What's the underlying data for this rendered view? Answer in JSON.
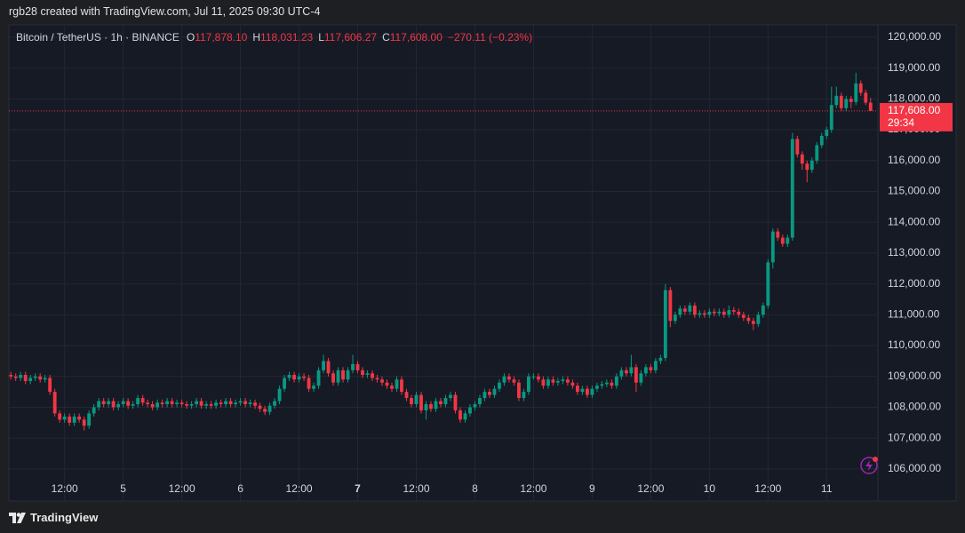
{
  "header": {
    "caption": "rgb28 created with TradingView.com, Jul 11, 2025 09:30 UTC-4"
  },
  "chart_data": {
    "type": "candlestick",
    "symbol": "Bitcoin / TetherUS · 1h · BINANCE",
    "ohlc_legend": [
      {
        "key": "O",
        "value": "117,878.10"
      },
      {
        "key": "H",
        "value": "118,031.23"
      },
      {
        "key": "L",
        "value": "117,606.27"
      },
      {
        "key": "C",
        "value": "117,608.00"
      }
    ],
    "change": "−270.11 (−0.23%)",
    "up_color": "#089981",
    "down_color": "#f23645",
    "grid": true,
    "open": [
      109050,
      109000,
      108950,
      109050,
      108850,
      108950,
      109000,
      108900,
      108950,
      108500,
      107800,
      107600,
      107700,
      107500,
      107700,
      107600,
      107400,
      107800,
      108000,
      108200,
      108100,
      108200,
      108000,
      108100,
      108200,
      108050,
      108100,
      108300,
      108150,
      108100,
      108000,
      108150,
      108100,
      108200,
      108100,
      108150,
      108100,
      108050,
      108100,
      108200,
      108050,
      108100,
      108050,
      108150,
      108100,
      108200,
      108100,
      108150,
      108200,
      108100,
      108150,
      108050,
      107950,
      107850,
      108050,
      108200,
      108600,
      108950,
      109050,
      108900,
      109000,
      108950,
      108600,
      108700,
      109200,
      109500,
      109100,
      108800,
      109200,
      108900,
      109200,
      109400,
      109200,
      109050,
      109100,
      108950,
      108900,
      108800,
      108700,
      108600,
      108900,
      108500,
      108300,
      108100,
      108400,
      107900,
      108100,
      107950,
      108200,
      108100,
      108300,
      108400,
      107900,
      107600,
      107800,
      108000,
      108100,
      108300,
      108500,
      108400,
      108600,
      108800,
      109000,
      108900,
      108800,
      108300,
      108500,
      109000,
      109000,
      108900,
      108700,
      108900,
      108800,
      108850,
      108900,
      108800,
      108700,
      108500,
      108600,
      108400,
      108600,
      108700,
      108750,
      108800,
      108700,
      109000,
      109200,
      109100,
      109300,
      108800,
      109100,
      109300,
      109200,
      109500,
      109600,
      111800,
      110800,
      111000,
      111200,
      111100,
      111300,
      111000,
      111050,
      111000,
      111100,
      111050,
      111100,
      111000,
      111150,
      111100,
      111000,
      110900,
      110800,
      110700,
      111000,
      111300,
      112700,
      113700,
      113500,
      113300,
      113500,
      116700,
      116200,
      115900,
      115700,
      116000,
      116500,
      116800,
      117000,
      117800,
      118100,
      117700,
      118000,
      117900,
      118500,
      118200,
      117878.1
    ],
    "high": [
      109150,
      109100,
      109150,
      109150,
      109050,
      109100,
      109100,
      109050,
      109050,
      108600,
      107900,
      107800,
      107800,
      107800,
      107800,
      107700,
      107900,
      108100,
      108300,
      108300,
      108300,
      108300,
      108200,
      108300,
      108300,
      108200,
      108400,
      108400,
      108250,
      108200,
      108250,
      108250,
      108300,
      108300,
      108250,
      108250,
      108200,
      108200,
      108300,
      108300,
      108200,
      108200,
      108250,
      108250,
      108300,
      108300,
      108250,
      108300,
      108300,
      108250,
      108250,
      108150,
      108050,
      108150,
      108300,
      108700,
      109050,
      109150,
      109150,
      109100,
      109100,
      109050,
      108800,
      109300,
      109700,
      109600,
      109200,
      109300,
      109300,
      109300,
      109700,
      109500,
      109300,
      109200,
      109200,
      109050,
      109000,
      108900,
      108800,
      109000,
      109000,
      108600,
      108400,
      108500,
      108500,
      108200,
      108200,
      108300,
      108300,
      108400,
      108500,
      108500,
      108000,
      107900,
      108100,
      108200,
      108400,
      108600,
      108600,
      108700,
      108900,
      109100,
      109100,
      109000,
      108900,
      108600,
      109100,
      109100,
      109100,
      109000,
      109000,
      109000,
      108950,
      109000,
      109000,
      108900,
      108800,
      108700,
      108700,
      108700,
      108800,
      108850,
      108900,
      108900,
      109100,
      109300,
      109300,
      109700,
      109400,
      109200,
      109400,
      109400,
      109600,
      109700,
      112000,
      111900,
      111100,
      111300,
      111300,
      111400,
      111400,
      111150,
      111150,
      111200,
      111200,
      111200,
      111200,
      111300,
      111250,
      111200,
      111100,
      111000,
      110900,
      111100,
      111400,
      112800,
      113800,
      113800,
      113600,
      113600,
      116900,
      116800,
      116300,
      116000,
      116100,
      116600,
      116900,
      117100,
      118400,
      118400,
      118200,
      118100,
      118100,
      118850,
      118600,
      118300,
      118031.23
    ],
    "low": [
      108900,
      108850,
      108850,
      108750,
      108750,
      108850,
      108800,
      108800,
      108400,
      107700,
      107500,
      107500,
      107400,
      107400,
      107500,
      107250,
      107300,
      107700,
      107900,
      108000,
      108000,
      107900,
      107900,
      108000,
      107950,
      107950,
      108000,
      108050,
      108000,
      107900,
      107900,
      108000,
      108000,
      108000,
      108000,
      108000,
      107950,
      107950,
      108000,
      107950,
      107950,
      107950,
      107950,
      108000,
      108000,
      108000,
      108000,
      108050,
      108000,
      108000,
      107950,
      107850,
      107750,
      107750,
      107950,
      108100,
      108500,
      108850,
      108800,
      108800,
      108850,
      108500,
      108500,
      108600,
      109100,
      109000,
      108700,
      108700,
      108800,
      108800,
      109100,
      109100,
      108950,
      108950,
      108850,
      108800,
      108700,
      108600,
      108500,
      108500,
      108400,
      108200,
      108000,
      108000,
      107800,
      107600,
      107850,
      107850,
      108000,
      108000,
      108200,
      107800,
      107500,
      107500,
      107700,
      107900,
      108000,
      108200,
      108300,
      108300,
      108500,
      108700,
      108800,
      108700,
      108200,
      108200,
      108400,
      108900,
      108800,
      108600,
      108600,
      108700,
      108700,
      108750,
      108700,
      108600,
      108400,
      108400,
      108300,
      108300,
      108500,
      108600,
      108650,
      108600,
      108600,
      108900,
      109000,
      109000,
      108500,
      108700,
      109000,
      109100,
      109100,
      109400,
      109500,
      110600,
      110700,
      110900,
      111000,
      111000,
      110900,
      110900,
      110900,
      110900,
      110950,
      110950,
      110900,
      110900,
      111000,
      110900,
      110800,
      110700,
      110500,
      110600,
      110900,
      111200,
      112500,
      113400,
      113200,
      113200,
      113400,
      116100,
      115700,
      115300,
      115600,
      115900,
      116400,
      116700,
      116900,
      117700,
      117600,
      117600,
      117700,
      117800,
      118100,
      117800,
      117606.27
    ],
    "close": [
      109000,
      108950,
      109050,
      108850,
      108950,
      109000,
      108900,
      108950,
      108500,
      107800,
      107600,
      107700,
      107500,
      107700,
      107600,
      107400,
      107800,
      108000,
      108200,
      108100,
      108200,
      108000,
      108100,
      108200,
      108050,
      108100,
      108300,
      108150,
      108100,
      108000,
      108150,
      108100,
      108200,
      108100,
      108150,
      108100,
      108050,
      108100,
      108200,
      108050,
      108100,
      108050,
      108150,
      108100,
      108200,
      108100,
      108150,
      108200,
      108100,
      108150,
      108050,
      107950,
      107850,
      108050,
      108200,
      108600,
      108950,
      109050,
      108900,
      109000,
      108950,
      108600,
      108700,
      109200,
      109500,
      109100,
      108800,
      109200,
      108900,
      109200,
      109400,
      109200,
      109050,
      109100,
      108950,
      108900,
      108800,
      108700,
      108600,
      108900,
      108500,
      108300,
      108100,
      108400,
      107900,
      108100,
      107950,
      108200,
      108100,
      108300,
      108400,
      107900,
      107600,
      107800,
      108000,
      108100,
      108300,
      108500,
      108400,
      108600,
      108800,
      109000,
      108900,
      108800,
      108300,
      108500,
      109000,
      109000,
      108900,
      108700,
      108900,
      108800,
      108850,
      108900,
      108800,
      108700,
      108500,
      108600,
      108400,
      108600,
      108700,
      108750,
      108800,
      108700,
      109000,
      109200,
      109100,
      109300,
      108800,
      109100,
      109300,
      109200,
      109500,
      109600,
      111800,
      110800,
      111000,
      111200,
      111100,
      111300,
      111000,
      111050,
      111000,
      111100,
      111050,
      111100,
      111000,
      111150,
      111100,
      111000,
      110900,
      110800,
      110700,
      111000,
      111300,
      112700,
      113700,
      113500,
      113300,
      113500,
      116700,
      116200,
      115900,
      115700,
      116000,
      116500,
      116800,
      117000,
      117800,
      118100,
      117700,
      118000,
      117900,
      118500,
      118200,
      117878.1,
      117608
    ],
    "xlim": [
      -0.4,
      177.5
    ],
    "xticks": [
      {
        "value": 11,
        "label": "12:00"
      },
      {
        "value": 23,
        "label": "5"
      },
      {
        "value": 35,
        "label": "12:00"
      },
      {
        "value": 47,
        "label": "6"
      },
      {
        "value": 59,
        "label": "12:00"
      },
      {
        "value": 71,
        "label": "7"
      },
      {
        "value": 83,
        "label": "12:00"
      },
      {
        "value": 95,
        "label": "8"
      },
      {
        "value": 107,
        "label": "12:00"
      },
      {
        "value": 119,
        "label": "9"
      },
      {
        "value": 131,
        "label": "12:00"
      },
      {
        "value": 143,
        "label": "10"
      },
      {
        "value": 155,
        "label": "12:00"
      },
      {
        "value": 167,
        "label": "11"
      }
    ],
    "ylim": [
      104960,
      120400
    ],
    "yticks": [
      {
        "value": 106000,
        "label": "106,000.00"
      },
      {
        "value": 107000,
        "label": "107,000.00"
      },
      {
        "value": 108000,
        "label": "108,000.00"
      },
      {
        "value": 109000,
        "label": "109,000.00"
      },
      {
        "value": 110000,
        "label": "110,000.00"
      },
      {
        "value": 111000,
        "label": "111,000.00"
      },
      {
        "value": 112000,
        "label": "112,000.00"
      },
      {
        "value": 113000,
        "label": "113,000.00"
      },
      {
        "value": 114000,
        "label": "114,000.00"
      },
      {
        "value": 115000,
        "label": "115,000.00"
      },
      {
        "value": 116000,
        "label": "116,000.00"
      },
      {
        "value": 117000,
        "label": "117,000.00"
      },
      {
        "value": 118000,
        "label": "118,000.00"
      },
      {
        "value": 119000,
        "label": "119,000.00"
      },
      {
        "value": 120000,
        "label": "120,000.00"
      }
    ],
    "last_price": {
      "value": 117608,
      "label": "117,608.00",
      "countdown": "29:34"
    }
  },
  "footer": {
    "brand": "TradingView"
  }
}
